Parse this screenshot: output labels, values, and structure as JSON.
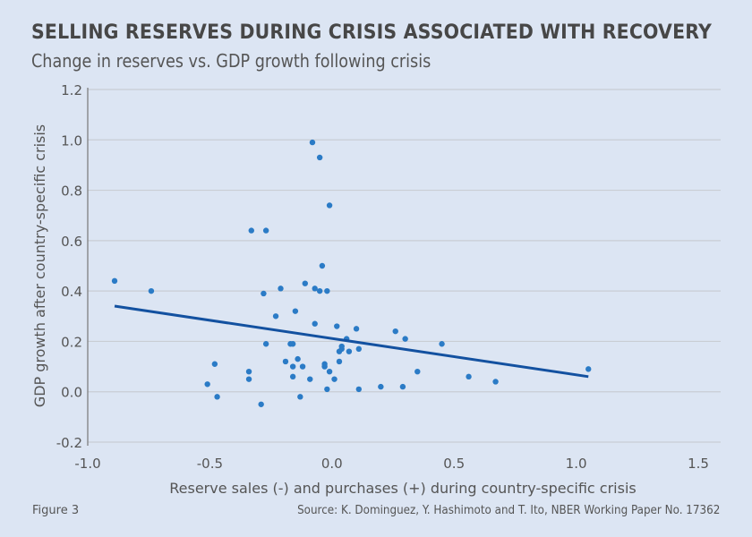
{
  "header": {
    "title": "SELLING RESERVES DURING CRISIS ASSOCIATED WITH RECOVERY",
    "subtitle": "Change in reserves vs. GDP growth following crisis"
  },
  "footer": {
    "figure_label": "Figure 3",
    "source": "Source: K. Dominguez, Y. Hashimoto and T. Ito, NBER Working Paper No. 17362"
  },
  "colors": {
    "background": "#dce5f3",
    "point": "#2b7bc6",
    "trendline": "#1351a0",
    "gridline": "#c9cdd4",
    "axis": "#777777"
  },
  "chart_data": {
    "type": "scatter",
    "title": "SELLING RESERVES DURING CRISIS ASSOCIATED WITH RECOVERY",
    "subtitle": "Change in reserves vs. GDP growth following crisis",
    "xlabel": "Reserve sales (-) and purchases (+) during country-specific crisis",
    "ylabel": "GDP growth after country-specific crisis",
    "xlim": [
      -1.0,
      1.5
    ],
    "ylim": [
      -0.2,
      1.2
    ],
    "xticks": [
      "-1.0",
      "-0.5",
      "0.0",
      "0.5",
      "1.0",
      "1.5"
    ],
    "xtick_values": [
      -1.0,
      -0.5,
      0.0,
      0.5,
      1.0,
      1.5
    ],
    "yticks": [
      "-0.2",
      "0.0",
      "0.2",
      "0.4",
      "0.6",
      "0.8",
      "1.0",
      "1.2"
    ],
    "ytick_values": [
      -0.2,
      0.0,
      0.2,
      0.4,
      0.6,
      0.8,
      1.0,
      1.2
    ],
    "grid": "horizontal",
    "legend": "none",
    "points": [
      {
        "x": -0.89,
        "y": 0.44
      },
      {
        "x": -0.74,
        "y": 0.4
      },
      {
        "x": -0.51,
        "y": 0.03
      },
      {
        "x": -0.48,
        "y": 0.11
      },
      {
        "x": -0.47,
        "y": -0.02
      },
      {
        "x": -0.34,
        "y": 0.08
      },
      {
        "x": -0.34,
        "y": 0.05
      },
      {
        "x": -0.33,
        "y": 0.64
      },
      {
        "x": -0.29,
        "y": -0.05
      },
      {
        "x": -0.28,
        "y": 0.39
      },
      {
        "x": -0.27,
        "y": 0.64
      },
      {
        "x": -0.27,
        "y": 0.19
      },
      {
        "x": -0.23,
        "y": 0.3
      },
      {
        "x": -0.21,
        "y": 0.41
      },
      {
        "x": -0.19,
        "y": 0.12
      },
      {
        "x": -0.17,
        "y": 0.19
      },
      {
        "x": -0.16,
        "y": 0.19
      },
      {
        "x": -0.16,
        "y": 0.1
      },
      {
        "x": -0.16,
        "y": 0.06
      },
      {
        "x": -0.15,
        "y": 0.32
      },
      {
        "x": -0.14,
        "y": 0.13
      },
      {
        "x": -0.13,
        "y": -0.02
      },
      {
        "x": -0.12,
        "y": 0.1
      },
      {
        "x": -0.11,
        "y": 0.43
      },
      {
        "x": -0.09,
        "y": 0.05
      },
      {
        "x": -0.08,
        "y": 0.99
      },
      {
        "x": -0.07,
        "y": 0.41
      },
      {
        "x": -0.07,
        "y": 0.27
      },
      {
        "x": -0.05,
        "y": 0.93
      },
      {
        "x": -0.05,
        "y": 0.4
      },
      {
        "x": -0.04,
        "y": 0.5
      },
      {
        "x": -0.03,
        "y": 0.11
      },
      {
        "x": -0.03,
        "y": 0.1
      },
      {
        "x": -0.02,
        "y": 0.4
      },
      {
        "x": -0.02,
        "y": 0.01
      },
      {
        "x": -0.01,
        "y": 0.74
      },
      {
        "x": -0.01,
        "y": 0.08
      },
      {
        "x": 0.01,
        "y": 0.05
      },
      {
        "x": 0.02,
        "y": 0.26
      },
      {
        "x": 0.03,
        "y": 0.16
      },
      {
        "x": 0.03,
        "y": 0.12
      },
      {
        "x": 0.04,
        "y": 0.18
      },
      {
        "x": 0.04,
        "y": 0.17
      },
      {
        "x": 0.06,
        "y": 0.21
      },
      {
        "x": 0.07,
        "y": 0.16
      },
      {
        "x": 0.1,
        "y": 0.25
      },
      {
        "x": 0.11,
        "y": 0.17
      },
      {
        "x": 0.11,
        "y": 0.01
      },
      {
        "x": 0.2,
        "y": 0.02
      },
      {
        "x": 0.26,
        "y": 0.24
      },
      {
        "x": 0.29,
        "y": 0.02
      },
      {
        "x": 0.3,
        "y": 0.21
      },
      {
        "x": 0.35,
        "y": 0.08
      },
      {
        "x": 0.45,
        "y": 0.19
      },
      {
        "x": 0.56,
        "y": 0.06
      },
      {
        "x": 0.67,
        "y": 0.04
      },
      {
        "x": 1.05,
        "y": 0.09
      }
    ],
    "trendline": {
      "type": "linear",
      "x_start": -0.89,
      "y_start": 0.34,
      "x_end": 1.05,
      "y_end": 0.06
    }
  }
}
